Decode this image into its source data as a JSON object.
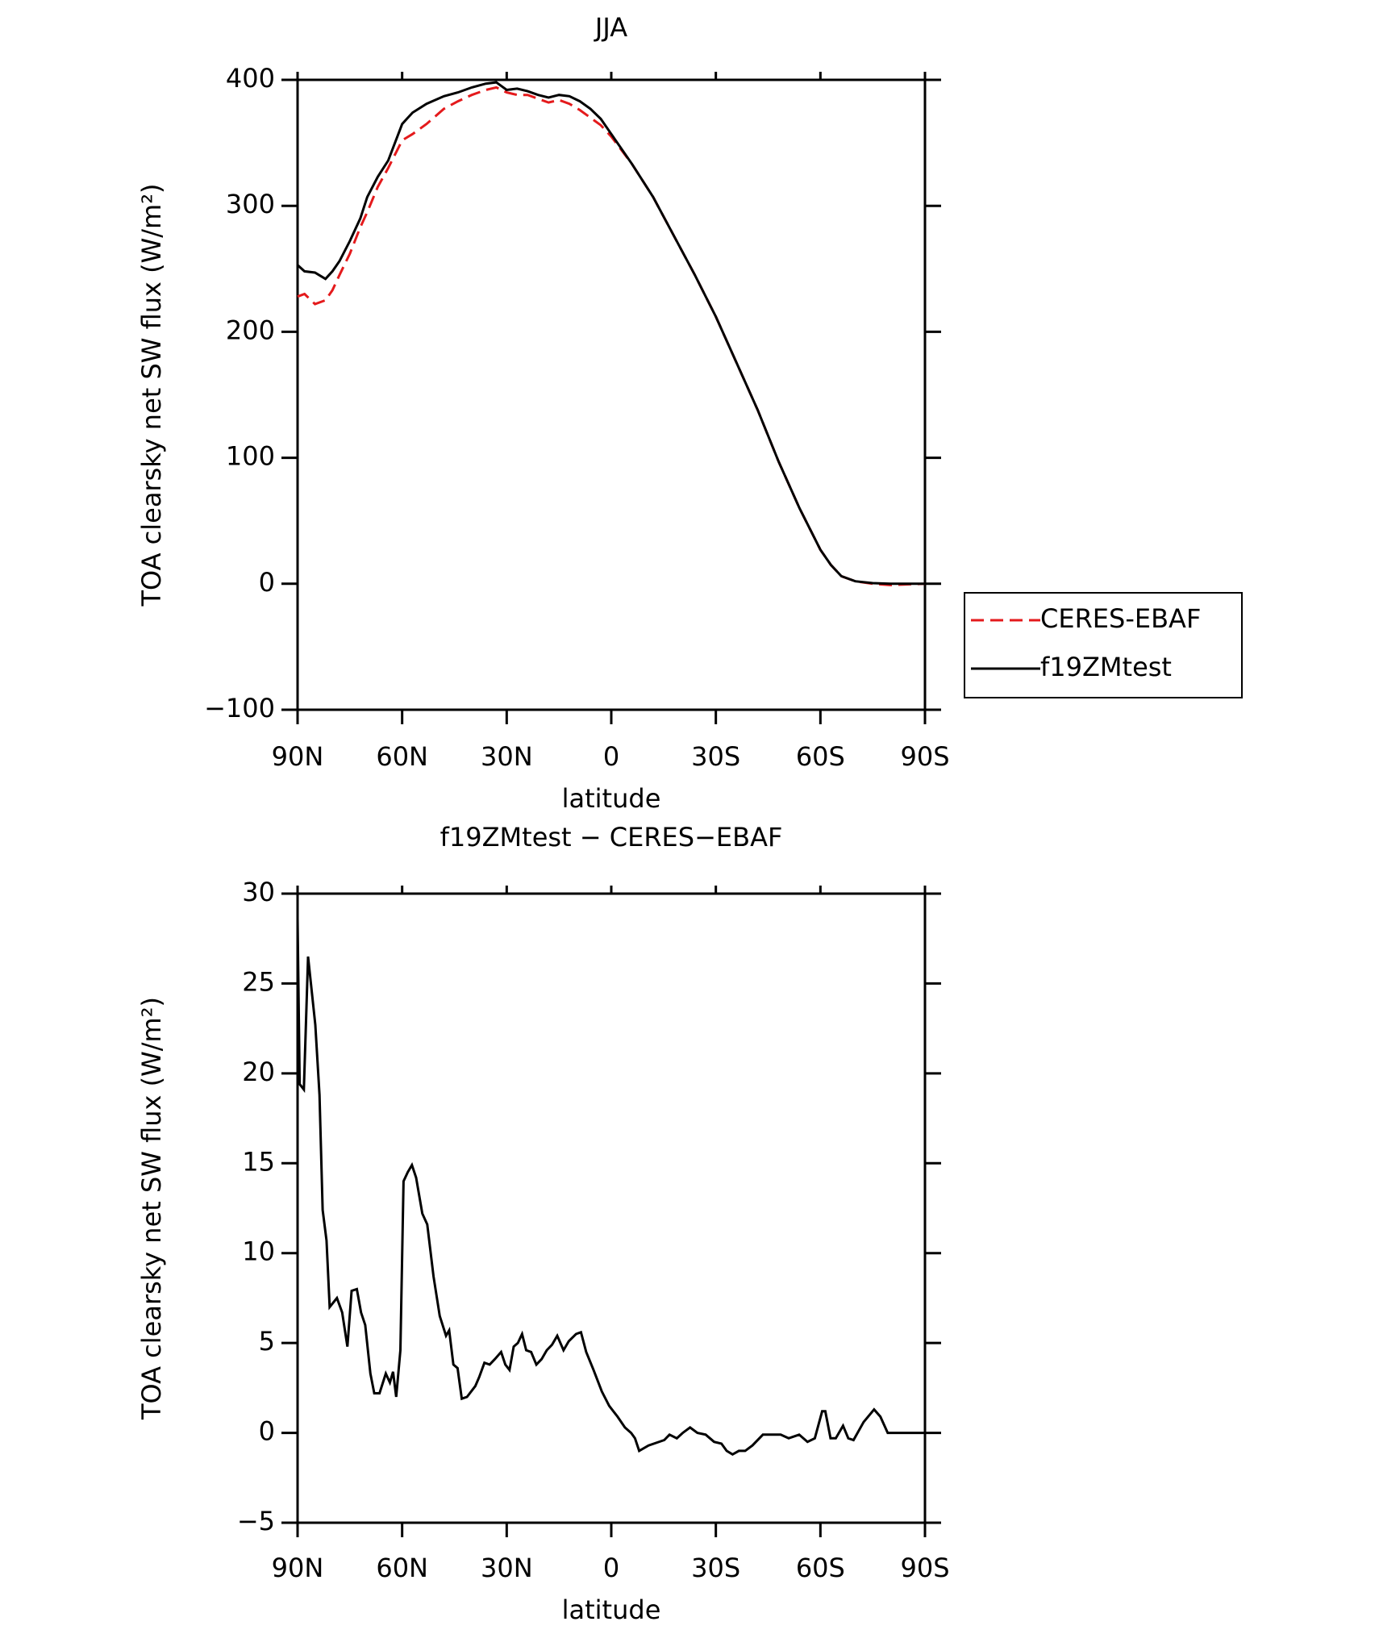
{
  "chart_data": [
    {
      "type": "line",
      "title": "JJA",
      "xlabel": "latitude",
      "ylabel": "TOA clearsky net SW flux (W/m²)",
      "x": [
        90,
        88,
        85,
        82,
        80,
        78,
        75,
        72,
        70,
        67,
        64,
        60,
        57,
        53,
        48,
        44,
        40,
        36,
        33,
        30,
        27,
        24,
        21,
        18,
        15,
        12,
        9,
        6,
        3,
        0,
        -6,
        -12,
        -18,
        -24,
        -30,
        -36,
        -42,
        -48,
        -54,
        -60,
        -63,
        -66,
        -70,
        -75,
        -80,
        -90
      ],
      "series": [
        {
          "name": "CERES-EBAF",
          "color": "#e41a1c",
          "dashed": true,
          "values": [
            228,
            230,
            222,
            225,
            233,
            245,
            262,
            283,
            295,
            315,
            330,
            352,
            357,
            365,
            377,
            383,
            388,
            392,
            394,
            390,
            388,
            388,
            385,
            382,
            384,
            381,
            376,
            370,
            364,
            355,
            333,
            307,
            276,
            245,
            212,
            175,
            138,
            97,
            60,
            27,
            15,
            6,
            2,
            0,
            -1,
            0
          ]
        },
        {
          "name": "f19ZMtest",
          "color": "#000000",
          "dashed": false,
          "values": [
            253,
            248,
            247,
            242,
            248,
            256,
            272,
            290,
            307,
            323,
            336,
            365,
            374,
            381,
            387,
            390,
            394,
            397,
            398,
            392,
            393,
            391,
            388,
            386,
            388,
            387,
            383,
            377,
            369,
            357,
            333,
            307,
            276,
            245,
            212,
            175,
            138,
            97,
            60,
            27,
            15,
            6,
            2,
            0.5,
            0,
            0
          ]
        }
      ],
      "xlim": [
        90,
        -90
      ],
      "xticks": [
        {
          "value": 90,
          "label": "90N"
        },
        {
          "value": 60,
          "label": "60N"
        },
        {
          "value": 30,
          "label": "30N"
        },
        0,
        {
          "value": -30,
          "label": "30S"
        },
        {
          "value": -60,
          "label": "60S"
        },
        {
          "value": -90,
          "label": "90S"
        }
      ],
      "ylim": [
        -100,
        400
      ],
      "yticks": [
        {
          "value": -100,
          "label": "−100"
        },
        0,
        100,
        200,
        300,
        400
      ],
      "legend": "right"
    },
    {
      "type": "line",
      "title": "f19ZMtest − CERES−EBAF",
      "xlabel": "latitude",
      "ylabel": "TOA clearsky net SW flux (W/m²)",
      "x": [
        90,
        89.4,
        88.2,
        87,
        84.9,
        83.7,
        82.8,
        81.7,
        80.8,
        78.7,
        77.2,
        75.7,
        74.5,
        73,
        71.8,
        70.6,
        69.1,
        68,
        66.5,
        64.7,
        63.5,
        62.6,
        61.7,
        60.5,
        59.6,
        58.4,
        57.2,
        56,
        54.2,
        52.8,
        51,
        49.2,
        47.4,
        46.5,
        45.3,
        44.1,
        42.9,
        41.4,
        39,
        37.9,
        36.4,
        34.9,
        33.4,
        31.6,
        30.4,
        29.2,
        28,
        26.8,
        25.6,
        24.4,
        23,
        21.5,
        20,
        18.5,
        17,
        15.5,
        13.7,
        12.2,
        10.1,
        8.7,
        7.2,
        5.1,
        2.7,
        0.6,
        -1.8,
        -3.9,
        -5.7,
        -6.8,
        -8,
        -10.7,
        -15.2,
        -16.7,
        -18.8,
        -20.5,
        -22.6,
        -24.7,
        -27.1,
        -29.5,
        -31.6,
        -33.1,
        -34.8,
        -36.6,
        -38.4,
        -40.5,
        -43.5,
        -45.6,
        -48.6,
        -50.9,
        -53.9,
        -56.3,
        -58.4,
        -60.5,
        -61.4,
        -62.9,
        -64.4,
        -66.5,
        -68,
        -69.5,
        -72.4,
        -75.4,
        -77.2,
        -79.3,
        -90
      ],
      "values": [
        28.6,
        19.4,
        19.1,
        26.5,
        22.7,
        18.8,
        12.4,
        10.7,
        7.0,
        7.5,
        6.7,
        4.8,
        7.9,
        8.0,
        6.7,
        6.0,
        3.3,
        2.2,
        2.2,
        3.3,
        2.8,
        3.4,
        2.0,
        4.6,
        14.0,
        14.5,
        14.9,
        14.2,
        12.2,
        11.6,
        8.7,
        6.5,
        5.4,
        5.7,
        3.8,
        3.6,
        1.9,
        2.0,
        2.6,
        3.1,
        3.9,
        3.8,
        4.1,
        4.5,
        3.8,
        3.5,
        4.8,
        5.0,
        5.5,
        4.6,
        4.5,
        3.8,
        4.1,
        4.6,
        4.9,
        5.4,
        4.6,
        5.1,
        5.5,
        5.6,
        4.5,
        3.5,
        2.3,
        1.5,
        0.9,
        0.3,
        0.0,
        -0.3,
        -1.0,
        -0.7,
        -0.4,
        -0.1,
        -0.3,
        0.0,
        0.3,
        0.0,
        -0.1,
        -0.5,
        -0.6,
        -1.0,
        -1.2,
        -1.0,
        -1.0,
        -0.7,
        -0.1,
        -0.1,
        -0.1,
        -0.3,
        -0.1,
        -0.5,
        -0.3,
        1.2,
        1.2,
        -0.3,
        -0.3,
        0.4,
        -0.3,
        -0.4,
        0.6,
        1.3,
        0.9,
        0.0,
        0.0
      ],
      "color": "#000000",
      "xlim": [
        90,
        -90
      ],
      "xticks": [
        {
          "value": 90,
          "label": "90N"
        },
        {
          "value": 60,
          "label": "60N"
        },
        {
          "value": 30,
          "label": "30N"
        },
        0,
        {
          "value": -30,
          "label": "30S"
        },
        {
          "value": -60,
          "label": "60S"
        },
        {
          "value": -90,
          "label": "90S"
        }
      ],
      "ylim": [
        -5,
        30
      ],
      "yticks": [
        {
          "value": -5,
          "label": "−5"
        },
        0,
        5,
        10,
        15,
        20,
        25,
        30
      ]
    }
  ]
}
